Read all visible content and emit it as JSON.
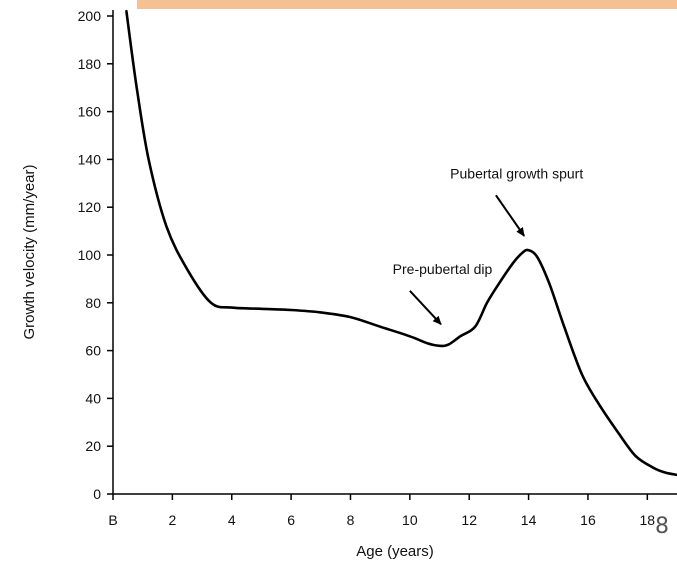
{
  "slide": {
    "accent_bar_color": "#f6c192",
    "page_number": "8"
  },
  "chart_data": {
    "type": "line",
    "xlabel": "Age (years)",
    "ylabel": "Growth velocity (mm/year)",
    "xlim": [
      0,
      19
    ],
    "ylim": [
      0,
      200
    ],
    "x_ticks": [
      {
        "value": 0,
        "label": "B"
      },
      {
        "value": 2,
        "label": "2"
      },
      {
        "value": 4,
        "label": "4"
      },
      {
        "value": 6,
        "label": "6"
      },
      {
        "value": 8,
        "label": "8"
      },
      {
        "value": 10,
        "label": "10"
      },
      {
        "value": 12,
        "label": "12"
      },
      {
        "value": 14,
        "label": "14"
      },
      {
        "value": 16,
        "label": "16"
      },
      {
        "value": 18,
        "label": "18"
      }
    ],
    "y_ticks": [
      0,
      20,
      40,
      60,
      80,
      100,
      120,
      140,
      160,
      180,
      200
    ],
    "grid": false,
    "series": [
      {
        "color": "#000000",
        "x": [
          0.45,
          0.8,
          1.2,
          1.8,
          2.5,
          3.3,
          4,
          5,
          6,
          7,
          8,
          9,
          10,
          10.6,
          11,
          11.3,
          11.7,
          12.2,
          12.6,
          13,
          13.5,
          13.8,
          14,
          14.3,
          14.7,
          15.2,
          15.8,
          16.4,
          17,
          17.6,
          18.2,
          18.6,
          19
        ],
        "y": [
          202,
          170,
          140,
          112,
          94,
          80,
          78,
          77.5,
          77,
          76,
          74,
          70,
          66,
          63,
          62,
          62.5,
          66,
          70,
          80,
          88,
          97,
          101,
          102,
          99,
          88,
          70,
          50,
          37,
          26,
          16,
          11,
          9,
          8
        ]
      }
    ],
    "annotations": [
      {
        "text": "Pubertal growth spurt",
        "label_x": 13.6,
        "label_y": 132,
        "arrow_from": [
          12.9,
          125
        ],
        "arrow_to": [
          13.85,
          108
        ]
      },
      {
        "text": "Pre-pubertal dip",
        "label_x": 11.1,
        "label_y": 92,
        "arrow_from": [
          10.0,
          85
        ],
        "arrow_to": [
          11.05,
          71
        ]
      }
    ]
  }
}
